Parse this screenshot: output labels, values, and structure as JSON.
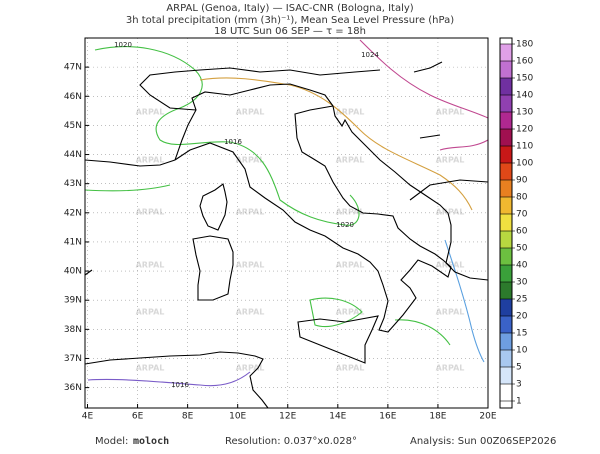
{
  "header": {
    "line1": "ARPAL (Genoa, Italy)  —  ISAC-CNR (Bologna, Italy)",
    "line2": "3h total precipitation (mm (3h)⁻¹), Mean Sea Level Pressure (hPa)",
    "line3": "18 UTC Sun 06 SEP  —  τ = 18h"
  },
  "map": {
    "xlim": [
      3.9,
      20
    ],
    "ylim": [
      35.3,
      48
    ],
    "xticks": [
      {
        "value": 4,
        "label": "4E"
      },
      {
        "value": 6,
        "label": "6E"
      },
      {
        "value": 8,
        "label": "8E"
      },
      {
        "value": 10,
        "label": "10E"
      },
      {
        "value": 12,
        "label": "12E"
      },
      {
        "value": 14,
        "label": "14E"
      },
      {
        "value": 16,
        "label": "16E"
      },
      {
        "value": 18,
        "label": "18E"
      },
      {
        "value": 20,
        "label": "20E"
      }
    ],
    "yticks": [
      {
        "value": 36,
        "label": "36N"
      },
      {
        "value": 37,
        "label": "37N"
      },
      {
        "value": 38,
        "label": "38N"
      },
      {
        "value": 39,
        "label": "39N"
      },
      {
        "value": 40,
        "label": "40N"
      },
      {
        "value": 41,
        "label": "41N"
      },
      {
        "value": 42,
        "label": "42N"
      },
      {
        "value": 43,
        "label": "43N"
      },
      {
        "value": 44,
        "label": "44N"
      },
      {
        "value": 45,
        "label": "45N"
      },
      {
        "value": 46,
        "label": "46N"
      },
      {
        "value": 47,
        "label": "47N"
      }
    ],
    "grid": true,
    "watermark": "ARPAL",
    "isobars": [
      {
        "label": "1020",
        "color": "#44c044"
      },
      {
        "label": "1024",
        "color": "#d4a040"
      },
      {
        "label": "1016",
        "color": "#7a5cc8"
      }
    ]
  },
  "colorbar": {
    "levels": [
      1,
      3,
      5,
      10,
      15,
      20,
      25,
      30,
      40,
      50,
      60,
      70,
      80,
      90,
      100,
      110,
      120,
      130,
      140,
      150,
      160,
      180
    ],
    "colors": [
      "#ffffff",
      "#d6e6fa",
      "#a8c8f0",
      "#6e9ee0",
      "#3a62c8",
      "#1f3fa0",
      "#2c7a2c",
      "#3aa03a",
      "#6cc040",
      "#b8d840",
      "#f0e040",
      "#f0b830",
      "#e88020",
      "#e04818",
      "#c81818",
      "#a01050",
      "#b02890",
      "#9040b0",
      "#7030a0",
      "#c070d0",
      "#e0a0e8"
    ]
  },
  "footer": {
    "model_label": "Model:",
    "model": "moloch",
    "resolution": "Resolution: 0.037°x0.028°",
    "analysis": "Analysis: Sun 00Z06SEP2026"
  }
}
